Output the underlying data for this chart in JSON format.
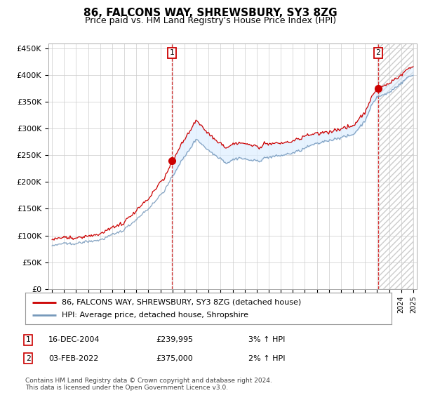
{
  "title": "86, FALCONS WAY, SHREWSBURY, SY3 8ZG",
  "subtitle": "Price paid vs. HM Land Registry's House Price Index (HPI)",
  "ylabel_ticks": [
    "£0",
    "£50K",
    "£100K",
    "£150K",
    "£200K",
    "£250K",
    "£300K",
    "£350K",
    "£400K",
    "£450K"
  ],
  "ytick_values": [
    0,
    50000,
    100000,
    150000,
    200000,
    250000,
    300000,
    350000,
    400000,
    450000
  ],
  "ylim": [
    0,
    460000
  ],
  "xlim_start": 1994.7,
  "xlim_end": 2025.3,
  "transaction1": {
    "date_num": 2004.96,
    "price": 239995,
    "label": "1"
  },
  "transaction2": {
    "date_num": 2022.09,
    "price": 375000,
    "label": "2"
  },
  "legend_line1": "86, FALCONS WAY, SHREWSBURY, SY3 8ZG (detached house)",
  "legend_line2": "HPI: Average price, detached house, Shropshire",
  "table_row1": [
    "1",
    "16-DEC-2004",
    "£239,995",
    "3% ↑ HPI"
  ],
  "table_row2": [
    "2",
    "03-FEB-2022",
    "£375,000",
    "2% ↑ HPI"
  ],
  "footer": "Contains HM Land Registry data © Crown copyright and database right 2024.\nThis data is licensed under the Open Government Licence v3.0.",
  "line_color_red": "#cc0000",
  "line_color_blue": "#7799bb",
  "fill_color": "#ddeeff",
  "grid_color": "#cccccc",
  "bg_color": "#ffffff",
  "title_fontsize": 11,
  "subtitle_fontsize": 9
}
